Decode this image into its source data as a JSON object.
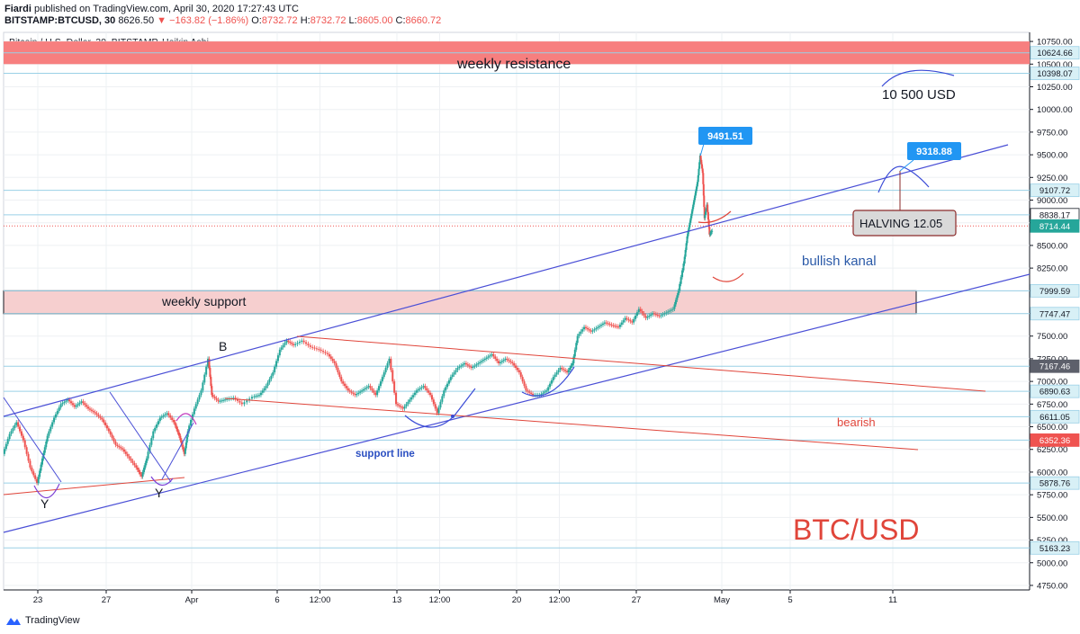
{
  "header": {
    "author": "Fiardi",
    "published_text": "published on TradingView.com, April 30, 2020 17:27:43 UTC",
    "symbol": "BITSTAMP:BTCUSD, 30",
    "last": "8626.50",
    "change_arrow": "▼",
    "change": "−163.82 (−1.86%)",
    "o_label": "O:",
    "o": "8732.72",
    "h_label": "H:",
    "h": "8732.72",
    "l_label": "L:",
    "l": "8605.00",
    "c_label": "C:",
    "c": "8660.72"
  },
  "chart_title": "Bitcoin / U.S. Dollar, 30, BITSTAMP, Heikin Ashi",
  "footer_brand": "TradingView",
  "colors": {
    "up": "#26a69a",
    "down": "#ef5350",
    "channel": "#4a4fd6",
    "trend_red": "#e0453a",
    "label_blue": "#2196f3"
  },
  "chart_data": {
    "type": "line",
    "title": "Bitcoin / U.S. Dollar, 30, BITSTAMP, Heikin Ashi",
    "ylim": [
      4700,
      10850
    ],
    "y_ticks": [
      4750,
      5000,
      5250,
      5500,
      5750,
      6000,
      6250,
      6500,
      6750,
      7000,
      7250,
      7500,
      7750,
      8000,
      8250,
      8500,
      8750,
      9000,
      9250,
      9500,
      9750,
      10000,
      10250,
      10500,
      10750
    ],
    "y_tick_labels": [
      "4750.00",
      "5000.00",
      "5250.00",
      "5500.00",
      "5750.00",
      "6000.00",
      "6250.00",
      "6500.00",
      "6750.00",
      "7000.00",
      "7250.00",
      "7500.00",
      "7750.00",
      "8000.00",
      "8250.00",
      "8500.00",
      "8750.00",
      "9000.00",
      "9250.00",
      "9500.00",
      "9750.00",
      "10000.00",
      "10250.00",
      "10500.00",
      "10750.00"
    ],
    "x_ticks": [
      {
        "t": 1.0,
        "label": "23"
      },
      {
        "t": 5.0,
        "label": "27"
      },
      {
        "t": 10.0,
        "label": "Apr"
      },
      {
        "t": 15.0,
        "label": "6"
      },
      {
        "t": 17.5,
        "label": "12:00"
      },
      {
        "t": 22.0,
        "label": "13"
      },
      {
        "t": 24.5,
        "label": "12:00"
      },
      {
        "t": 29.0,
        "label": "20"
      },
      {
        "t": 31.5,
        "label": "12:00"
      },
      {
        "t": 36.0,
        "label": "27"
      },
      {
        "t": 41.0,
        "label": "May"
      },
      {
        "t": 45.0,
        "label": "5"
      },
      {
        "t": 51.0,
        "label": "11"
      }
    ],
    "x_range": [
      -1.0,
      59.0
    ],
    "price_series": [
      [
        -1.0,
        6200
      ],
      [
        -0.6,
        6420
      ],
      [
        -0.2,
        6550
      ],
      [
        0.2,
        6350
      ],
      [
        0.6,
        6050
      ],
      [
        1.0,
        5880
      ],
      [
        1.3,
        6150
      ],
      [
        1.6,
        6400
      ],
      [
        2.0,
        6600
      ],
      [
        2.4,
        6750
      ],
      [
        2.8,
        6800
      ],
      [
        3.2,
        6720
      ],
      [
        3.6,
        6780
      ],
      [
        4.0,
        6700
      ],
      [
        4.4,
        6650
      ],
      [
        4.8,
        6580
      ],
      [
        5.2,
        6450
      ],
      [
        5.6,
        6300
      ],
      [
        6.0,
        6250
      ],
      [
        6.4,
        6150
      ],
      [
        6.8,
        6050
      ],
      [
        7.1,
        5950
      ],
      [
        7.4,
        6150
      ],
      [
        7.8,
        6450
      ],
      [
        8.2,
        6600
      ],
      [
        8.6,
        6650
      ],
      [
        9.0,
        6550
      ],
      [
        9.3,
        6400
      ],
      [
        9.6,
        6200
      ],
      [
        9.8,
        6450
      ],
      [
        10.2,
        6700
      ],
      [
        10.6,
        6900
      ],
      [
        11.0,
        7250
      ],
      [
        11.2,
        6850
      ],
      [
        11.6,
        6780
      ],
      [
        12.0,
        6800
      ],
      [
        12.5,
        6820
      ],
      [
        13.0,
        6750
      ],
      [
        13.6,
        6830
      ],
      [
        14.0,
        6850
      ],
      [
        14.4,
        6950
      ],
      [
        14.8,
        7100
      ],
      [
        15.2,
        7350
      ],
      [
        15.6,
        7450
      ],
      [
        16.0,
        7400
      ],
      [
        16.5,
        7450
      ],
      [
        17.0,
        7380
      ],
      [
        17.5,
        7350
      ],
      [
        18.0,
        7300
      ],
      [
        18.4,
        7200
      ],
      [
        18.8,
        7000
      ],
      [
        19.2,
        6900
      ],
      [
        19.6,
        6850
      ],
      [
        20.0,
        6900
      ],
      [
        20.4,
        6950
      ],
      [
        20.8,
        6850
      ],
      [
        21.2,
        7050
      ],
      [
        21.6,
        7250
      ],
      [
        22.0,
        6750
      ],
      [
        22.4,
        6700
      ],
      [
        22.8,
        6800
      ],
      [
        23.2,
        6900
      ],
      [
        23.6,
        6950
      ],
      [
        24.0,
        6850
      ],
      [
        24.4,
        6650
      ],
      [
        24.8,
        6900
      ],
      [
        25.2,
        7050
      ],
      [
        25.6,
        7150
      ],
      [
        26.0,
        7200
      ],
      [
        26.4,
        7150
      ],
      [
        26.8,
        7200
      ],
      [
        27.2,
        7250
      ],
      [
        27.6,
        7300
      ],
      [
        28.0,
        7200
      ],
      [
        28.4,
        7250
      ],
      [
        28.8,
        7200
      ],
      [
        29.2,
        7100
      ],
      [
        29.6,
        6900
      ],
      [
        30.0,
        6850
      ],
      [
        30.4,
        6850
      ],
      [
        30.8,
        6900
      ],
      [
        31.2,
        7050
      ],
      [
        31.6,
        7150
      ],
      [
        32.0,
        7100
      ],
      [
        32.3,
        7200
      ],
      [
        32.6,
        7500
      ],
      [
        33.0,
        7600
      ],
      [
        33.4,
        7550
      ],
      [
        33.8,
        7600
      ],
      [
        34.2,
        7650
      ],
      [
        34.6,
        7620
      ],
      [
        35.0,
        7600
      ],
      [
        35.4,
        7700
      ],
      [
        35.8,
        7650
      ],
      [
        36.2,
        7800
      ],
      [
        36.6,
        7700
      ],
      [
        37.0,
        7750
      ],
      [
        37.4,
        7720
      ],
      [
        37.8,
        7760
      ],
      [
        38.2,
        7800
      ],
      [
        38.5,
        8000
      ],
      [
        38.8,
        8300
      ],
      [
        39.0,
        8600
      ],
      [
        39.2,
        8800
      ],
      [
        39.4,
        9000
      ],
      [
        39.6,
        9200
      ],
      [
        39.75,
        9491
      ],
      [
        39.9,
        9300
      ],
      [
        40.0,
        8800
      ],
      [
        40.15,
        8950
      ],
      [
        40.3,
        8620
      ],
      [
        40.45,
        8660
      ]
    ],
    "price_lines": [
      {
        "value": 10624.66,
        "label": "10624.66",
        "color": "#131722"
      },
      {
        "value": 10398.07,
        "label": "10398.07",
        "color": "#131722"
      },
      {
        "value": 9107.72,
        "label": "9107.72",
        "color": "#131722"
      },
      {
        "value": 8838.17,
        "label": "8838.17",
        "color": "#ffffff"
      },
      {
        "value": 8714.44,
        "label": "8714.44",
        "color": "#131722"
      },
      {
        "value": 7999.59,
        "label": "7999.59",
        "color": "#131722"
      },
      {
        "value": 7747.47,
        "label": "7747.47",
        "color": "#131722"
      },
      {
        "value": 7167.46,
        "label": "7167.46",
        "color": "#131722"
      },
      {
        "value": 6890.63,
        "label": "6890.63",
        "color": "#131722"
      },
      {
        "value": 6611.05,
        "label": "6611.05",
        "color": "#131722"
      },
      {
        "value": 6352.36,
        "label": "6352.36",
        "color": "#131722"
      },
      {
        "value": 5878.76,
        "label": "5878.76",
        "color": "#131722"
      },
      {
        "value": 5163.23,
        "label": "5163.23",
        "color": "#131722"
      }
    ],
    "zones": [
      {
        "name": "weekly resistance",
        "from": 10500,
        "to": 10750
      },
      {
        "name": "weekly support",
        "from": 7747.47,
        "to": 7999.59
      }
    ],
    "callouts": [
      {
        "text": "9491.51",
        "t": 39.75,
        "value": 9491.51
      },
      {
        "text": "9318.88",
        "t": 49.5,
        "value": 9318.88
      }
    ],
    "annotations": {
      "weekly_resistance": "weekly resistance",
      "weekly_support": "weekly support",
      "target": "10 500 USD",
      "halving": "HALVING 12.05",
      "bullish": "bullish kanal",
      "bearish": "bearish",
      "support_line": "support line",
      "pair": "BTC/USD",
      "b": "B",
      "y1": "Y",
      "y2": "Y"
    }
  }
}
